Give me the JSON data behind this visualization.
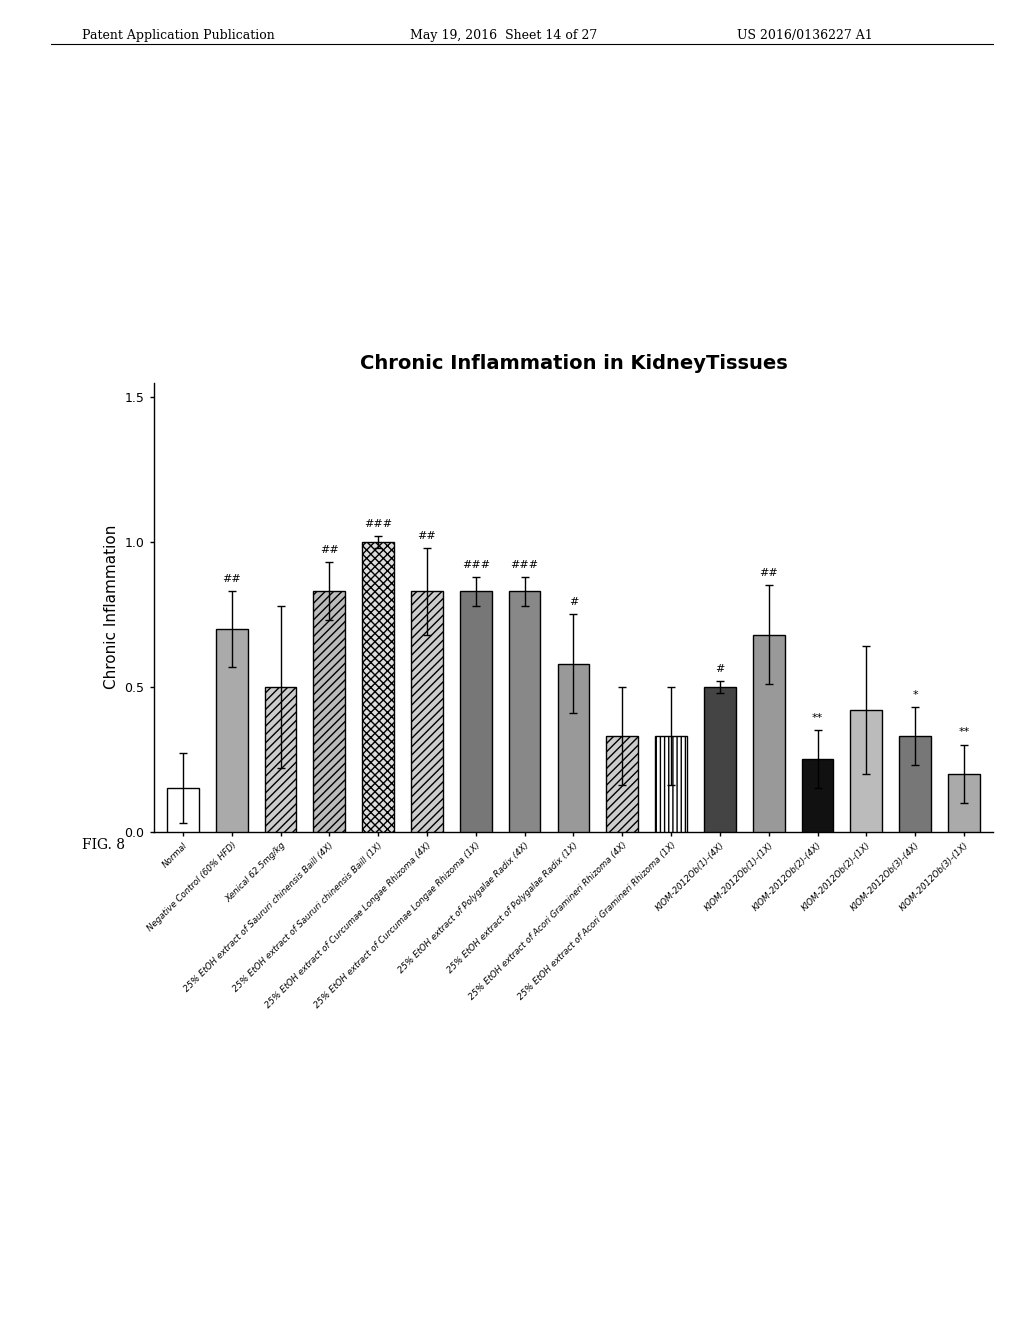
{
  "title": "Chronic Inflammation in KidneyTissues",
  "ylabel": "Chronic Inflammation",
  "ylim": [
    0,
    1.55
  ],
  "yticks": [
    0.0,
    0.5,
    1.0,
    1.5
  ],
  "bars": [
    {
      "label": "Normal",
      "value": 0.15,
      "error": 0.12,
      "color": "#ffffff",
      "edgecolor": "black",
      "hatch": "",
      "sig": ""
    },
    {
      "label": "Negative Control (60% HFD)",
      "value": 0.7,
      "error": 0.13,
      "color": "#aaaaaa",
      "edgecolor": "black",
      "hatch": "",
      "sig": "##"
    },
    {
      "label": "Xenical 62.5mg/kg",
      "value": 0.5,
      "error": 0.28,
      "color": "#cccccc",
      "edgecolor": "black",
      "hatch": "////",
      "sig": ""
    },
    {
      "label": "25% EtOH extract of Saururi chinensis Baill (4X)",
      "value": 0.83,
      "error": 0.1,
      "color": "#bbbbbb",
      "edgecolor": "black",
      "hatch": "////",
      "sig": "##"
    },
    {
      "label": "25% EtOH extract of Saururi chinensis Baill (1X)",
      "value": 1.0,
      "error": 0.02,
      "color": "#dddddd",
      "edgecolor": "black",
      "hatch": "xxxx",
      "sig": "###"
    },
    {
      "label": "25% EtOH extract of Curcumae Longae Rhizoma (4X)",
      "value": 0.83,
      "error": 0.15,
      "color": "#cccccc",
      "edgecolor": "black",
      "hatch": "////",
      "sig": "##"
    },
    {
      "label": "25% EtOH extract of Curcumae Longae Rhizoma (1X)",
      "value": 0.83,
      "error": 0.05,
      "color": "#777777",
      "edgecolor": "black",
      "hatch": "",
      "sig": "###"
    },
    {
      "label": "25% EtOH extract of Polygalae Radix (4X)",
      "value": 0.83,
      "error": 0.05,
      "color": "#888888",
      "edgecolor": "black",
      "hatch": "",
      "sig": "###"
    },
    {
      "label": "25% EtOH extract of Polygalae Radix (1X)",
      "value": 0.58,
      "error": 0.17,
      "color": "#999999",
      "edgecolor": "black",
      "hatch": "",
      "sig": "#"
    },
    {
      "label": "25% EtOH extract of Acori Gramineri Rhizoma (4X)",
      "value": 0.33,
      "error": 0.17,
      "color": "#cccccc",
      "edgecolor": "black",
      "hatch": "////",
      "sig": ""
    },
    {
      "label": "25% EtOH extract of Acori Gramineri Rhizoma (1X)",
      "value": 0.33,
      "error": 0.17,
      "color": "#ffffff",
      "edgecolor": "black",
      "hatch": "||||",
      "sig": ""
    },
    {
      "label": "KIOM-2012Ob(1)-(4X)",
      "value": 0.5,
      "error": 0.02,
      "color": "#444444",
      "edgecolor": "black",
      "hatch": "",
      "sig": "#"
    },
    {
      "label": "KIOM-2012Ob(1)-(1X)",
      "value": 0.68,
      "error": 0.17,
      "color": "#999999",
      "edgecolor": "black",
      "hatch": "",
      "sig": "##"
    },
    {
      "label": "KIOM-2012Ob(2)-(4X)",
      "value": 0.25,
      "error": 0.1,
      "color": "#111111",
      "edgecolor": "black",
      "hatch": "",
      "sig": "**"
    },
    {
      "label": "KIOM-2012Ob(2)-(1X)",
      "value": 0.42,
      "error": 0.22,
      "color": "#bbbbbb",
      "edgecolor": "black",
      "hatch": "",
      "sig": ""
    },
    {
      "label": "KIOM-2012Ob(3)-(4X)",
      "value": 0.33,
      "error": 0.1,
      "color": "#777777",
      "edgecolor": "black",
      "hatch": "",
      "sig": "*"
    },
    {
      "label": "KIOM-2012Ob(3)-(1X)",
      "value": 0.2,
      "error": 0.1,
      "color": "#aaaaaa",
      "edgecolor": "black",
      "hatch": "",
      "sig": "**"
    }
  ],
  "x_labels": [
    "Normal",
    "Negative Control (60% HFD)",
    "Xenical 62.5mg/kg",
    "25% EtOH extract of Saururi chinensis Baill (4X)",
    "25% EtOH extract of Saururi chinensis Baill (1X)",
    "25% EtOH extract of Curcumae Longae Rhizoma (4X)",
    "25% EtOH extract of Curcumae Longae Rhizoma (1X)",
    "25% EtOH extract of Polygalae Radix (4X)",
    "25% EtOH extract of Polygalae Radix (1X)",
    "25% EtOH extract of Acori Gramineri Rhizoma (4X)",
    "25% EtOH extract of Acori Gramineri Rhizoma (1X)",
    "KIOM-2012Ob(1)-(4X)",
    "KIOM-2012Ob(1)-(1X)",
    "KIOM-2012Ob(2)-(4X)",
    "KIOM-2012Ob(2)-(1X)",
    "KIOM-2012Ob(3)-(4X)",
    "KIOM-2012Ob(3)-(1X)"
  ],
  "header_left": "Patent Application Publication",
  "header_mid": "May 19, 2016  Sheet 14 of 27",
  "header_right": "US 2016/0136227 A1",
  "fig_label": "FIG. 8",
  "background_color": "#ffffff",
  "title_fontsize": 14,
  "axis_label_fontsize": 11,
  "tick_fontsize": 9,
  "header_fontsize": 9,
  "fig_label_fontsize": 10
}
